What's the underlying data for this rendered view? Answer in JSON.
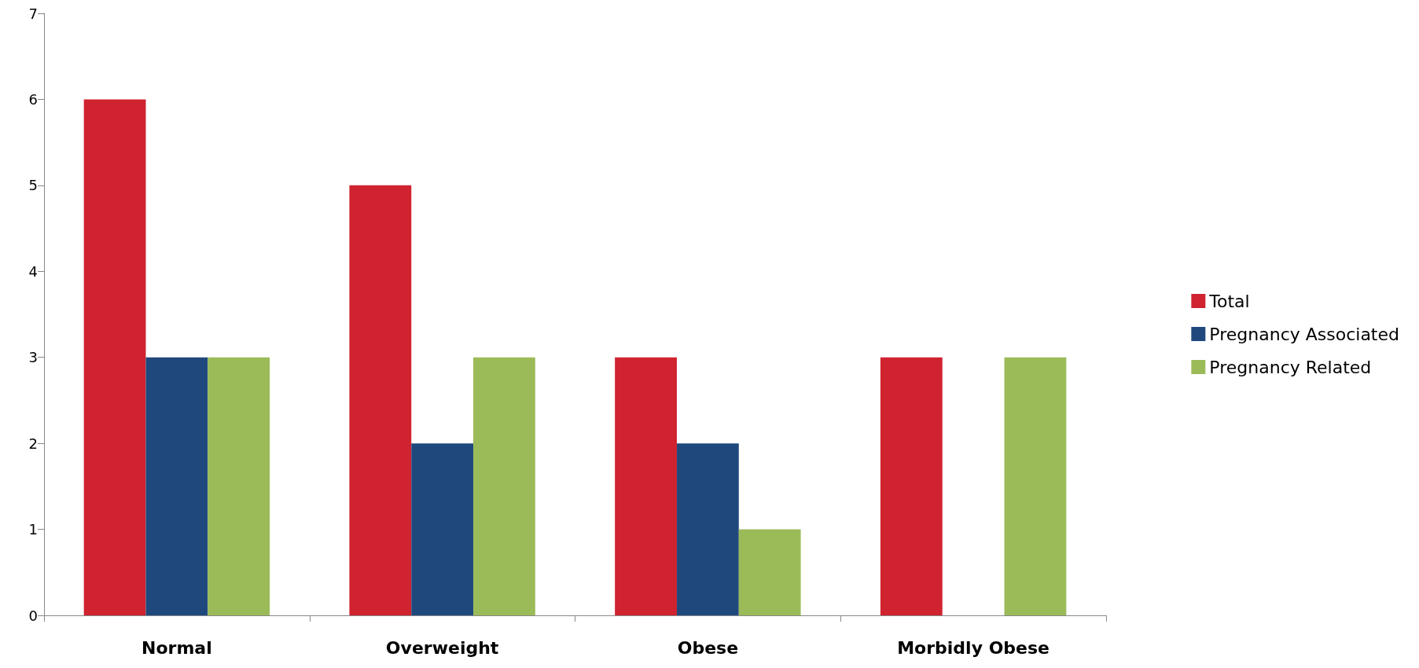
{
  "chart_data": {
    "type": "bar",
    "categories": [
      "Normal",
      "Overweight",
      "Obese",
      "Morbidly Obese"
    ],
    "series": [
      {
        "name": "Total",
        "color": "#cf232f",
        "values": [
          6,
          5,
          3,
          3
        ]
      },
      {
        "name": "Pregnancy Associated",
        "color": "#1f497d",
        "values": [
          3,
          2,
          2,
          0
        ]
      },
      {
        "name": "Pregnancy Related",
        "color": "#9bbb59",
        "values": [
          3,
          3,
          1,
          3
        ]
      }
    ],
    "ylim": [
      0,
      7
    ],
    "yticks": [
      0,
      1,
      2,
      3,
      4,
      5,
      6,
      7
    ],
    "grid": false,
    "legend": "right"
  }
}
